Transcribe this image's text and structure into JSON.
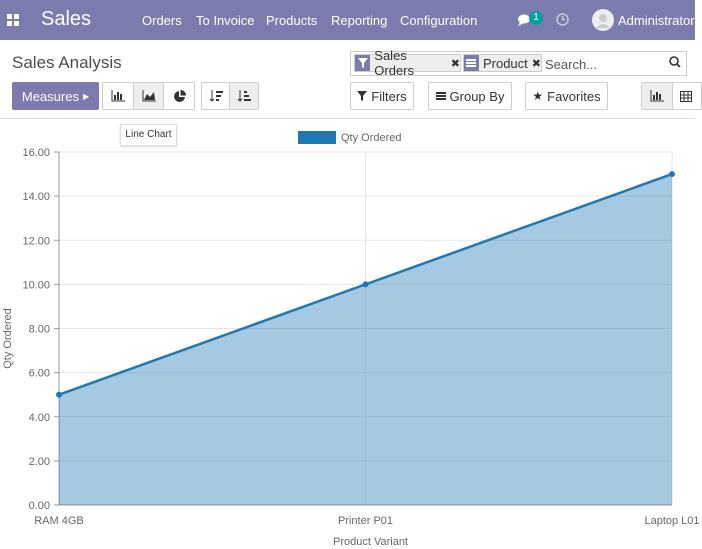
{
  "navbar": {
    "app": "Sales",
    "menu": [
      "Orders",
      "To Invoice",
      "Products",
      "Reporting",
      "Configuration"
    ],
    "badge": "1",
    "user": "Administrator"
  },
  "control_panel": {
    "title": "Sales Analysis",
    "measures": "Measures",
    "tooltip": "Line Chart",
    "facets": [
      "Sales Orders",
      "Product"
    ],
    "search_placeholder": "Search...",
    "filters": "Filters",
    "group_by": "Group By",
    "favorites": "Favorites"
  },
  "chart_data": {
    "type": "line",
    "categories": [
      "RAM 4GB",
      "Printer P01",
      "Laptop L01"
    ],
    "series": [
      {
        "name": "Qty Ordered",
        "color": "#1f77b4",
        "values": [
          5,
          10,
          15
        ]
      }
    ],
    "x_label": "Product Variant",
    "y_label": "Qty Ordered",
    "ylim": [
      0,
      16
    ],
    "yticks": [
      {
        "value": 0,
        "label": "0.00"
      },
      {
        "value": 2,
        "label": "2.00"
      },
      {
        "value": 4,
        "label": "4.00"
      },
      {
        "value": 6,
        "label": "6.00"
      },
      {
        "value": 8,
        "label": "8.00"
      },
      {
        "value": 10,
        "label": "10.00"
      },
      {
        "value": 12,
        "label": "12.00"
      },
      {
        "value": 14,
        "label": "14.00"
      },
      {
        "value": 16,
        "label": "16.00"
      }
    ],
    "grid": true,
    "area": true,
    "legend": "top"
  }
}
